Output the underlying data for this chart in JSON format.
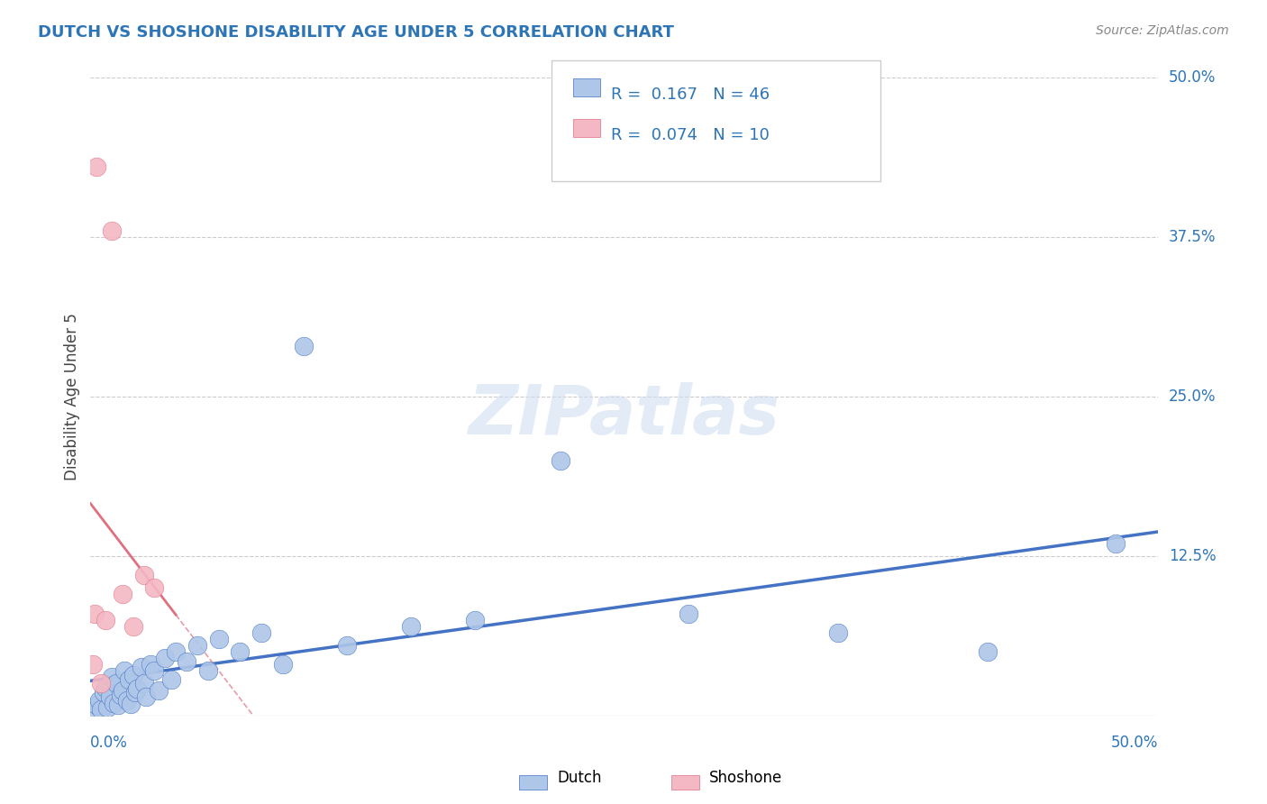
{
  "title": "DUTCH VS SHOSHONE DISABILITY AGE UNDER 5 CORRELATION CHART",
  "source": "Source: ZipAtlas.com",
  "ylabel": "Disability Age Under 5",
  "xlim": [
    0,
    50
  ],
  "ylim": [
    0,
    50
  ],
  "dutch_R": 0.167,
  "dutch_N": 46,
  "shoshone_R": 0.074,
  "shoshone_N": 10,
  "dutch_color": "#aec6e8",
  "shoshone_color": "#f4b8c4",
  "dutch_line_color": "#4472c4",
  "shoshone_line_color": "#e07080",
  "label_color": "#2e75b6",
  "title_color": "#2e75b6",
  "source_color": "#888888",
  "watermark": "ZIPatlas",
  "dutch_x": [
    0.2,
    0.3,
    0.4,
    0.5,
    0.6,
    0.7,
    0.8,
    0.9,
    1.0,
    1.1,
    1.2,
    1.3,
    1.4,
    1.5,
    1.6,
    1.7,
    1.8,
    1.9,
    2.0,
    2.1,
    2.2,
    2.4,
    2.5,
    2.6,
    2.8,
    3.0,
    3.2,
    3.5,
    3.8,
    4.0,
    4.5,
    5.0,
    5.5,
    6.0,
    7.0,
    8.0,
    9.0,
    10.0,
    12.0,
    15.0,
    18.0,
    22.0,
    28.0,
    35.0,
    42.0,
    48.0
  ],
  "dutch_y": [
    0.4,
    0.8,
    1.2,
    0.5,
    1.8,
    2.2,
    0.6,
    1.5,
    3.0,
    1.0,
    2.5,
    0.8,
    1.6,
    2.0,
    3.5,
    1.2,
    2.8,
    0.9,
    3.2,
    1.8,
    2.1,
    3.8,
    2.5,
    1.5,
    4.0,
    3.5,
    2.0,
    4.5,
    2.8,
    5.0,
    4.2,
    5.5,
    3.5,
    6.0,
    5.0,
    6.5,
    4.0,
    29.0,
    5.5,
    7.0,
    7.5,
    20.0,
    8.0,
    6.5,
    5.0,
    13.5
  ],
  "shoshone_x": [
    0.1,
    0.2,
    0.3,
    0.5,
    0.7,
    1.0,
    1.5,
    2.0,
    2.5,
    3.0
  ],
  "shoshone_y": [
    4.0,
    8.0,
    43.0,
    2.5,
    7.5,
    38.0,
    9.5,
    7.0,
    11.0,
    10.0
  ]
}
